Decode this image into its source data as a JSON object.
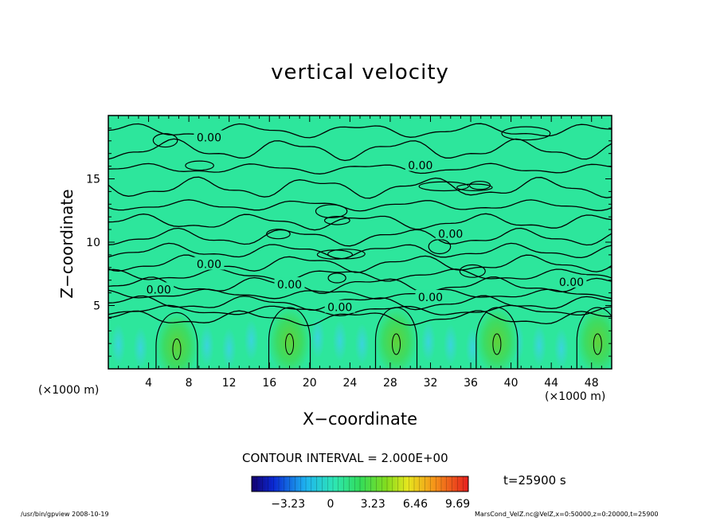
{
  "chart_data": {
    "type": "heatmap",
    "title": "vertical velocity",
    "xlabel": "X−coordinate",
    "ylabel": "Z−coordinate",
    "x_unit_left": "(×1000 m)",
    "x_unit_right": "(×1000 m)",
    "xlim": [
      0,
      50
    ],
    "ylim": [
      0,
      20
    ],
    "x_ticks": [
      4,
      8,
      12,
      16,
      20,
      24,
      28,
      32,
      36,
      40,
      44,
      48
    ],
    "y_ticks": [
      5,
      10,
      15
    ],
    "background_color": "#2de69c",
    "contour_label": "0.00",
    "contour_labels": [
      {
        "x": 10.0,
        "y": 18.2
      },
      {
        "x": 31.0,
        "y": 16.0
      },
      {
        "x": 34.0,
        "y": 10.6
      },
      {
        "x": 10.0,
        "y": 8.2
      },
      {
        "x": 18.0,
        "y": 6.6
      },
      {
        "x": 5.0,
        "y": 6.2
      },
      {
        "x": 32.0,
        "y": 5.6
      },
      {
        "x": 46.0,
        "y": 6.8
      },
      {
        "x": 23.0,
        "y": 4.8
      }
    ],
    "updrafts": [
      {
        "x": 6.8,
        "z": 1.8,
        "w": 4.0
      },
      {
        "x": 18.0,
        "z": 2.2,
        "w": 4.0
      },
      {
        "x": 28.6,
        "z": 2.2,
        "w": 3.6
      },
      {
        "x": 38.6,
        "z": 2.2,
        "w": 3.6
      },
      {
        "x": 48.6,
        "z": 2.2,
        "w": 3.4
      }
    ],
    "contour_interval": "CONTOUR INTERVAL = 2.000E+00",
    "colorbar": {
      "ticks": [
        "−3.23",
        "0",
        "3.23",
        "6.46",
        "9.69"
      ],
      "tick_values": [
        -3.23,
        0,
        3.23,
        6.46,
        9.69
      ],
      "min": -6.0,
      "max": 10.5
    },
    "time_label": "t=25900 s"
  },
  "footer": {
    "left": "/usr/bin/gpview 2008-10-19",
    "right": "MarsCond_VelZ.nc@VelZ,x=0:50000,z=0:20000,t=25900"
  }
}
